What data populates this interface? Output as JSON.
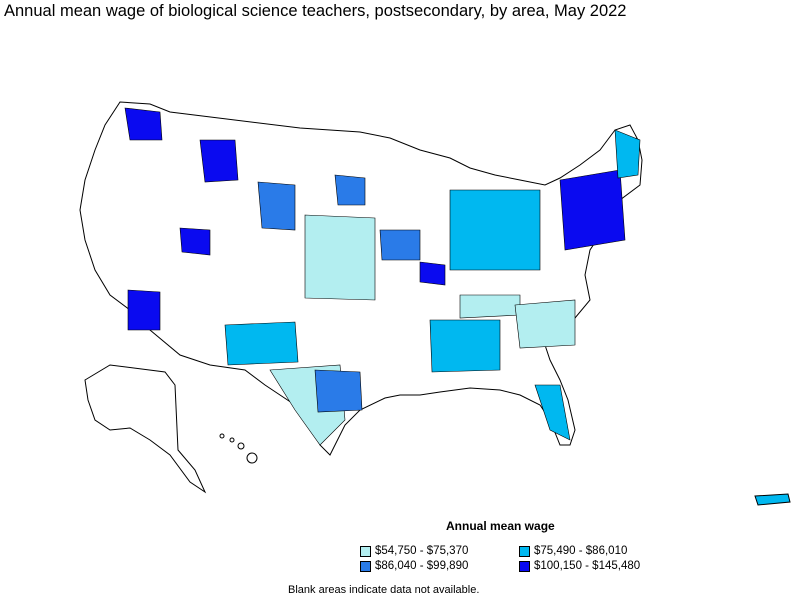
{
  "title": "Annual mean wage of biological science teachers, postsecondary, by area, May 2022",
  "legend": {
    "title": "Annual mean wage",
    "items": [
      {
        "label": "$54,750 - $75,370",
        "color": "#b3eef0"
      },
      {
        "label": "$75,490 - $86,010",
        "color": "#00b8f0"
      },
      {
        "label": "$86,040 - $99,890",
        "color": "#2a7be8"
      },
      {
        "label": "$100,150 - $145,480",
        "color": "#0a0af0"
      }
    ]
  },
  "footnote": "Blank areas indicate data not available.",
  "colors": {
    "border": "#000000",
    "land": "#ffffff"
  }
}
